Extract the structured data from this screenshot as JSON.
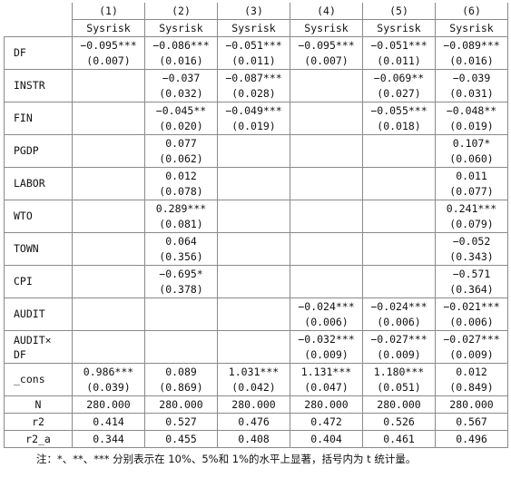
{
  "header": {
    "numbers": [
      "(1)",
      "(2)",
      "(3)",
      "(4)",
      "(5)",
      "(6)"
    ],
    "depvars": [
      "Sysrisk",
      "Sysrisk",
      "Sysrisk",
      "Sysrisk",
      "Sysrisk",
      "Sysrisk"
    ]
  },
  "rows": [
    {
      "label": "DF",
      "cells": [
        {
          "coef": "−0.095***",
          "se": "(0.007)"
        },
        {
          "coef": "−0.086***",
          "se": "(0.016)"
        },
        {
          "coef": "−0.051***",
          "se": "(0.011)"
        },
        {
          "coef": "−0.095***",
          "se": "(0.007)"
        },
        {
          "coef": "−0.051***",
          "se": "(0.011)"
        },
        {
          "coef": "−0.089***",
          "se": "(0.016)"
        }
      ]
    },
    {
      "label": "INSTR",
      "cells": [
        {
          "coef": "",
          "se": ""
        },
        {
          "coef": "−0.037",
          "se": "(0.032)"
        },
        {
          "coef": "−0.087***",
          "se": "(0.028)"
        },
        {
          "coef": "",
          "se": ""
        },
        {
          "coef": "−0.069**",
          "se": "(0.027)"
        },
        {
          "coef": "−0.039",
          "se": "(0.031)"
        }
      ]
    },
    {
      "label": "FIN",
      "cells": [
        {
          "coef": "",
          "se": ""
        },
        {
          "coef": "−0.045**",
          "se": "(0.020)"
        },
        {
          "coef": "−0.049***",
          "se": "(0.019)"
        },
        {
          "coef": "",
          "se": ""
        },
        {
          "coef": "−0.055***",
          "se": "(0.018)"
        },
        {
          "coef": "−0.048**",
          "se": "(0.019)"
        }
      ]
    },
    {
      "label": "PGDP",
      "cells": [
        {
          "coef": "",
          "se": ""
        },
        {
          "coef": "0.077",
          "se": "(0.062)"
        },
        {
          "coef": "",
          "se": ""
        },
        {
          "coef": "",
          "se": ""
        },
        {
          "coef": "",
          "se": ""
        },
        {
          "coef": "0.107*",
          "se": "(0.060)"
        }
      ]
    },
    {
      "label": "LABOR",
      "cells": [
        {
          "coef": "",
          "se": ""
        },
        {
          "coef": "0.012",
          "se": "(0.078)"
        },
        {
          "coef": "",
          "se": ""
        },
        {
          "coef": "",
          "se": ""
        },
        {
          "coef": "",
          "se": ""
        },
        {
          "coef": "0.011",
          "se": "(0.077)"
        }
      ]
    },
    {
      "label": "WTO",
      "cells": [
        {
          "coef": "",
          "se": ""
        },
        {
          "coef": "0.289***",
          "se": "(0.081)"
        },
        {
          "coef": "",
          "se": ""
        },
        {
          "coef": "",
          "se": ""
        },
        {
          "coef": "",
          "se": ""
        },
        {
          "coef": "0.241***",
          "se": "(0.079)"
        }
      ]
    },
    {
      "label": "TOWN",
      "cells": [
        {
          "coef": "",
          "se": ""
        },
        {
          "coef": "0.064",
          "se": "(0.356)"
        },
        {
          "coef": "",
          "se": ""
        },
        {
          "coef": "",
          "se": ""
        },
        {
          "coef": "",
          "se": ""
        },
        {
          "coef": "−0.052",
          "se": "(0.343)"
        }
      ]
    },
    {
      "label": "CPI",
      "cells": [
        {
          "coef": "",
          "se": ""
        },
        {
          "coef": "−0.695*",
          "se": "(0.378)"
        },
        {
          "coef": "",
          "se": ""
        },
        {
          "coef": "",
          "se": ""
        },
        {
          "coef": "",
          "se": ""
        },
        {
          "coef": "−0.571",
          "se": "(0.364)"
        }
      ]
    },
    {
      "label": "AUDIT",
      "cells": [
        {
          "coef": "",
          "se": ""
        },
        {
          "coef": "",
          "se": ""
        },
        {
          "coef": "",
          "se": ""
        },
        {
          "coef": "−0.024***",
          "se": "(0.006)"
        },
        {
          "coef": "−0.024***",
          "se": "(0.006)"
        },
        {
          "coef": "−0.021***",
          "se": "(0.006)"
        }
      ]
    },
    {
      "label": "AUDIT×",
      "label2": "DF",
      "cells": [
        {
          "coef": "",
          "se": ""
        },
        {
          "coef": "",
          "se": ""
        },
        {
          "coef": "",
          "se": ""
        },
        {
          "coef": "−0.032***",
          "se": "(0.009)"
        },
        {
          "coef": "−0.027***",
          "se": "(0.009)"
        },
        {
          "coef": "−0.027***",
          "se": "(0.009)"
        }
      ]
    },
    {
      "label": "_cons",
      "cells": [
        {
          "coef": "0.986***",
          "se": "(0.039)"
        },
        {
          "coef": "0.089",
          "se": "(0.869)"
        },
        {
          "coef": "1.031***",
          "se": "(0.042)"
        },
        {
          "coef": "1.131***",
          "se": "(0.047)"
        },
        {
          "coef": "1.180***",
          "se": "(0.051)"
        },
        {
          "coef": "0.012",
          "se": "(0.849)"
        }
      ]
    }
  ],
  "stats": [
    {
      "label": "N",
      "values": [
        "280.000",
        "280.000",
        "280.000",
        "280.000",
        "280.000",
        "280.000"
      ]
    },
    {
      "label": "r2",
      "values": [
        "0.414",
        "0.527",
        "0.476",
        "0.472",
        "0.526",
        "0.567"
      ]
    },
    {
      "label": "r2_a",
      "values": [
        "0.344",
        "0.455",
        "0.408",
        "0.404",
        "0.461",
        "0.496"
      ]
    }
  ],
  "note": "注：*、**、*** 分别表示在 10%、5%和 1%的水平上显著，括号内为 t 统计量。"
}
